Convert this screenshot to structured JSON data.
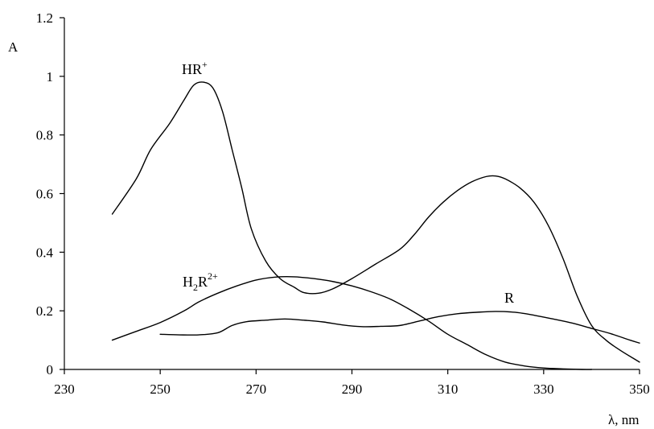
{
  "chart_data": {
    "type": "line",
    "title": "",
    "xlabel": "λ, nm",
    "ylabel": "A",
    "xlim": [
      230,
      350
    ],
    "ylim": [
      0,
      1.2
    ],
    "x_ticks": [
      230,
      250,
      270,
      290,
      310,
      330,
      350
    ],
    "x_tick_labels": [
      "230",
      "250",
      "270",
      "290",
      "310",
      "330",
      "350"
    ],
    "y_ticks": [
      0,
      0.2,
      0.4,
      0.6,
      0.8,
      1.0,
      1.2
    ],
    "y_tick_labels": [
      "0",
      "0.2",
      "0.4",
      "0.6",
      "0.8",
      "1",
      "1.2"
    ],
    "grid": false,
    "series": [
      {
        "name": "HR+",
        "label_main": "HR",
        "label_sup": "+",
        "points": [
          [
            240,
            0.53
          ],
          [
            245,
            0.65
          ],
          [
            248,
            0.75
          ],
          [
            252,
            0.84
          ],
          [
            255,
            0.92
          ],
          [
            257,
            0.97
          ],
          [
            259,
            0.98
          ],
          [
            261,
            0.96
          ],
          [
            263,
            0.88
          ],
          [
            265,
            0.75
          ],
          [
            267,
            0.62
          ],
          [
            269,
            0.48
          ],
          [
            272,
            0.37
          ],
          [
            275,
            0.31
          ],
          [
            278,
            0.28
          ],
          [
            280,
            0.262
          ],
          [
            283,
            0.26
          ],
          [
            286,
            0.275
          ],
          [
            290,
            0.31
          ],
          [
            295,
            0.36
          ],
          [
            300,
            0.41
          ],
          [
            303,
            0.46
          ],
          [
            306,
            0.52
          ],
          [
            309,
            0.57
          ],
          [
            312,
            0.61
          ],
          [
            315,
            0.64
          ],
          [
            318,
            0.658
          ],
          [
            320,
            0.66
          ],
          [
            322,
            0.65
          ],
          [
            325,
            0.62
          ],
          [
            328,
            0.57
          ],
          [
            331,
            0.49
          ],
          [
            334,
            0.38
          ],
          [
            337,
            0.25
          ],
          [
            340,
            0.15
          ],
          [
            343,
            0.1
          ],
          [
            346,
            0.065
          ],
          [
            349,
            0.035
          ],
          [
            350,
            0.025
          ]
        ]
      },
      {
        "name": "H2R2+",
        "label_main": "H",
        "label_sub": "2",
        "label_main2": "R",
        "label_sup": "2+",
        "points": [
          [
            240,
            0.1
          ],
          [
            245,
            0.13
          ],
          [
            250,
            0.16
          ],
          [
            255,
            0.2
          ],
          [
            258,
            0.23
          ],
          [
            262,
            0.26
          ],
          [
            266,
            0.285
          ],
          [
            270,
            0.305
          ],
          [
            274,
            0.315
          ],
          [
            278,
            0.316
          ],
          [
            282,
            0.31
          ],
          [
            286,
            0.3
          ],
          [
            290,
            0.285
          ],
          [
            294,
            0.265
          ],
          [
            298,
            0.24
          ],
          [
            302,
            0.205
          ],
          [
            306,
            0.165
          ],
          [
            310,
            0.12
          ],
          [
            314,
            0.085
          ],
          [
            318,
            0.05
          ],
          [
            322,
            0.025
          ],
          [
            326,
            0.012
          ],
          [
            330,
            0.005
          ],
          [
            334,
            0.002
          ],
          [
            338,
            0.0
          ],
          [
            340,
            0.0
          ]
        ]
      },
      {
        "name": "R",
        "label_main": "R",
        "points": [
          [
            250,
            0.12
          ],
          [
            254,
            0.118
          ],
          [
            258,
            0.118
          ],
          [
            262,
            0.125
          ],
          [
            265,
            0.15
          ],
          [
            268,
            0.163
          ],
          [
            272,
            0.168
          ],
          [
            276,
            0.172
          ],
          [
            280,
            0.168
          ],
          [
            284,
            0.162
          ],
          [
            288,
            0.152
          ],
          [
            292,
            0.146
          ],
          [
            296,
            0.147
          ],
          [
            300,
            0.15
          ],
          [
            304,
            0.165
          ],
          [
            308,
            0.18
          ],
          [
            312,
            0.19
          ],
          [
            316,
            0.195
          ],
          [
            320,
            0.198
          ],
          [
            324,
            0.195
          ],
          [
            328,
            0.185
          ],
          [
            332,
            0.172
          ],
          [
            336,
            0.158
          ],
          [
            340,
            0.14
          ],
          [
            344,
            0.122
          ],
          [
            348,
            0.1
          ],
          [
            350,
            0.09
          ]
        ]
      }
    ]
  }
}
